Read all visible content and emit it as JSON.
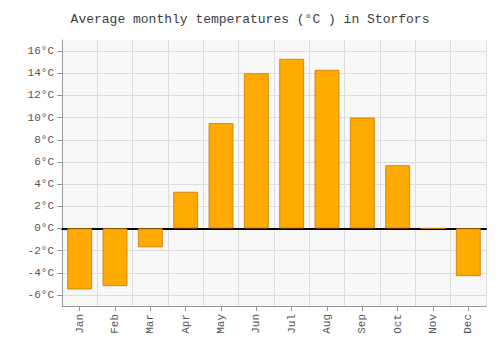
{
  "chart_data": {
    "type": "bar",
    "title": "Average monthly temperatures (°C ) in Storfors",
    "categories": [
      "Jan",
      "Feb",
      "Mar",
      "Apr",
      "May",
      "Jun",
      "Jul",
      "Aug",
      "Sep",
      "Oct",
      "Nov",
      "Dec"
    ],
    "values": [
      -5.5,
      -5.2,
      -1.7,
      3.3,
      9.5,
      14.0,
      15.3,
      14.3,
      10.0,
      5.7,
      0.0,
      -4.3
    ],
    "color": "#FFAA00",
    "ylim": [
      -7,
      17
    ],
    "yticks": [
      {
        "value": -6,
        "label": "-6°C"
      },
      {
        "value": -4,
        "label": "-4°C"
      },
      {
        "value": -2,
        "label": "-2°C"
      },
      {
        "value": 0,
        "label": "0°C"
      },
      {
        "value": 2,
        "label": "2°C"
      },
      {
        "value": 4,
        "label": "4°C"
      },
      {
        "value": 6,
        "label": "6°C"
      },
      {
        "value": 8,
        "label": "8°C"
      },
      {
        "value": 10,
        "label": "10°C"
      },
      {
        "value": 12,
        "label": "12°C"
      },
      {
        "value": 14,
        "label": "14°C"
      },
      {
        "value": 16,
        "label": "16°C"
      }
    ],
    "grid": true
  }
}
